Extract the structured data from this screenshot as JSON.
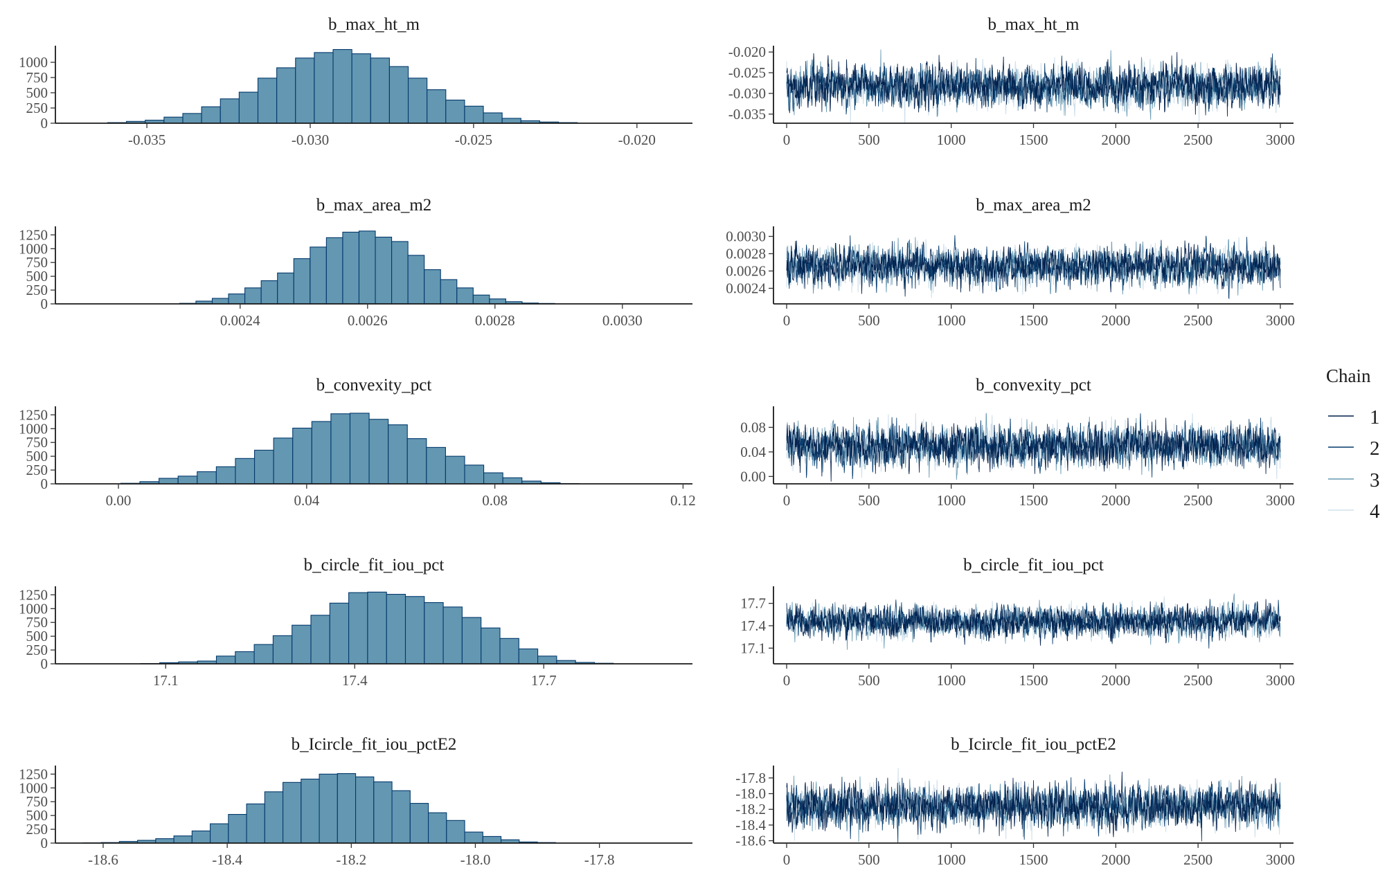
{
  "legend": {
    "title": "Chain",
    "items": [
      {
        "label": "1",
        "color": "#011f4b"
      },
      {
        "label": "2",
        "color": "#03396c"
      },
      {
        "label": "3",
        "color": "#6497b1"
      },
      {
        "label": "4",
        "color": "#d1e1ec"
      }
    ]
  },
  "chart_data": [
    {
      "type": "bar",
      "title": "b_max_ht_m",
      "xlim": [
        -0.0378,
        -0.0183
      ],
      "ylim": [
        0,
        1250
      ],
      "xticks": [
        -0.035,
        -0.03,
        -0.025,
        -0.02
      ],
      "xtick_labels": [
        "-0.035",
        "-0.030",
        "-0.025",
        "-0.020"
      ],
      "yticks": [
        0,
        250,
        500,
        750,
        1000
      ],
      "ytick_labels": [
        "0",
        "250",
        "500",
        "750",
        "1000"
      ],
      "bin_start": -0.0362,
      "bin_width": 0.000575,
      "values": [
        10,
        30,
        50,
        100,
        160,
        270,
        400,
        510,
        740,
        910,
        1070,
        1160,
        1210,
        1140,
        1070,
        930,
        740,
        550,
        380,
        280,
        170,
        80,
        40,
        20,
        10
      ]
    },
    {
      "type": "line",
      "title": "b_max_ht_m",
      "xlim": [
        -80,
        3080
      ],
      "ylim": [
        -0.0372,
        -0.0188
      ],
      "xticks": [
        0,
        500,
        1000,
        1500,
        2000,
        2500,
        3000
      ],
      "xtick_labels": [
        "0",
        "500",
        "1000",
        "1500",
        "2000",
        "2500",
        "3000"
      ],
      "yticks": [
        -0.035,
        -0.03,
        -0.025,
        -0.02
      ],
      "ytick_labels": [
        "-0.035",
        "-0.030",
        "-0.025",
        "-0.020"
      ],
      "iterations": 3000,
      "mean": -0.0282,
      "sd": 0.0024,
      "series": [
        {
          "name": "1",
          "color": "#011f4b"
        },
        {
          "name": "2",
          "color": "#03396c"
        },
        {
          "name": "3",
          "color": "#6497b1"
        },
        {
          "name": "4",
          "color": "#d1e1ec"
        }
      ]
    },
    {
      "type": "bar",
      "title": "b_max_area_m2",
      "xlim": [
        0.00211,
        0.00311
      ],
      "ylim": [
        0,
        1380
      ],
      "xticks": [
        0.0024,
        0.0026,
        0.0028,
        0.003
      ],
      "xtick_labels": [
        "0.0024",
        "0.0026",
        "0.0028",
        "0.0030"
      ],
      "yticks": [
        0,
        250,
        500,
        750,
        1000,
        1250
      ],
      "ytick_labels": [
        "0",
        "250",
        "500",
        "750",
        "1000",
        "1250"
      ],
      "bin_start": 0.002305,
      "bin_width": 2.56e-05,
      "values": [
        10,
        50,
        100,
        180,
        290,
        420,
        560,
        820,
        1030,
        1200,
        1300,
        1320,
        1210,
        1130,
        880,
        620,
        440,
        290,
        160,
        90,
        40,
        15,
        8
      ]
    },
    {
      "type": "line",
      "title": "b_max_area_m2",
      "xlim": [
        -80,
        3080
      ],
      "ylim": [
        0.00222,
        0.0031
      ],
      "xticks": [
        0,
        500,
        1000,
        1500,
        2000,
        2500,
        3000
      ],
      "xtick_labels": [
        "0",
        "500",
        "1000",
        "1500",
        "2000",
        "2500",
        "3000"
      ],
      "yticks": [
        0.0024,
        0.0026,
        0.0028,
        0.003
      ],
      "ytick_labels": [
        "0.0024",
        "0.0026",
        "0.0028",
        "0.0030"
      ],
      "iterations": 3000,
      "mean": 0.00266,
      "sd": 0.000105,
      "series": [
        {
          "name": "1",
          "color": "#011f4b"
        },
        {
          "name": "2",
          "color": "#03396c"
        },
        {
          "name": "3",
          "color": "#6497b1"
        },
        {
          "name": "4",
          "color": "#d1e1ec"
        }
      ]
    },
    {
      "type": "bar",
      "title": "b_convexity_pct",
      "xlim": [
        -0.0134,
        0.122
      ],
      "ylim": [
        0,
        1380
      ],
      "xticks": [
        0.0,
        0.04,
        0.08,
        0.12
      ],
      "xtick_labels": [
        "0.00",
        "0.04",
        "0.08",
        "0.12"
      ],
      "yticks": [
        0,
        250,
        500,
        750,
        1000,
        1250
      ],
      "ytick_labels": [
        "0",
        "250",
        "500",
        "750",
        "1000",
        "1250"
      ],
      "bin_start": 0.0005,
      "bin_width": 0.00406,
      "values": [
        10,
        40,
        100,
        140,
        220,
        310,
        460,
        610,
        830,
        1010,
        1130,
        1270,
        1280,
        1170,
        1070,
        820,
        660,
        500,
        340,
        200,
        110,
        50,
        20,
        5
      ]
    },
    {
      "type": "line",
      "title": "b_convexity_pct",
      "xlim": [
        -80,
        3080
      ],
      "ylim": [
        -0.012,
        0.112
      ],
      "xticks": [
        0,
        500,
        1000,
        1500,
        2000,
        2500,
        3000
      ],
      "xtick_labels": [
        "0",
        "500",
        "1000",
        "1500",
        "2000",
        "2500",
        "3000"
      ],
      "yticks": [
        0.0,
        0.04,
        0.08
      ],
      "ytick_labels": [
        "0.00",
        "0.04",
        "0.08"
      ],
      "iterations": 3000,
      "mean": 0.05,
      "sd": 0.016,
      "series": [
        {
          "name": "1",
          "color": "#011f4b"
        },
        {
          "name": "2",
          "color": "#03396c"
        },
        {
          "name": "3",
          "color": "#6497b1"
        },
        {
          "name": "4",
          "color": "#d1e1ec"
        }
      ]
    },
    {
      "type": "bar",
      "title": "b_circle_fit_iou_pct",
      "xlim": [
        16.925,
        17.936
      ],
      "ylim": [
        0,
        1380
      ],
      "xticks": [
        17.1,
        17.4,
        17.7
      ],
      "xtick_labels": [
        "17.1",
        "17.4",
        "17.7"
      ],
      "yticks": [
        0,
        250,
        500,
        750,
        1000,
        1250
      ],
      "ytick_labels": [
        "0",
        "250",
        "500",
        "750",
        "1000",
        "1250"
      ],
      "bin_start": 17.0605,
      "bin_width": 0.03,
      "values": [
        5,
        20,
        35,
        50,
        140,
        220,
        350,
        510,
        700,
        880,
        1100,
        1290,
        1300,
        1260,
        1220,
        1110,
        1030,
        840,
        650,
        460,
        270,
        140,
        60,
        25,
        10
      ]
    },
    {
      "type": "line",
      "title": "b_circle_fit_iou_pct",
      "xlim": [
        -80,
        3080
      ],
      "ylim": [
        16.89,
        17.91
      ],
      "xticks": [
        0,
        500,
        1000,
        1500,
        2000,
        2500,
        3000
      ],
      "xtick_labels": [
        "0",
        "500",
        "1000",
        "1500",
        "2000",
        "2500",
        "3000"
      ],
      "yticks": [
        17.1,
        17.4,
        17.7
      ],
      "ytick_labels": [
        "17.1",
        "17.4",
        "17.7"
      ],
      "iterations": 3000,
      "mean": 17.46,
      "sd": 0.1,
      "series": [
        {
          "name": "1",
          "color": "#011f4b"
        },
        {
          "name": "2",
          "color": "#03396c"
        },
        {
          "name": "3",
          "color": "#6497b1"
        },
        {
          "name": "4",
          "color": "#d1e1ec"
        }
      ]
    },
    {
      "type": "bar",
      "title": "b_Icircle_fit_iou_pctE2",
      "xlim": [
        -18.677,
        -17.65
      ],
      "ylim": [
        0,
        1380
      ],
      "xticks": [
        -18.6,
        -18.4,
        -18.2,
        -18.0,
        -17.8
      ],
      "xtick_labels": [
        "-18.6",
        "-18.4",
        "-18.2",
        "-18.0",
        "-17.8"
      ],
      "yticks": [
        0,
        250,
        500,
        750,
        1000,
        1250
      ],
      "ytick_labels": [
        "0",
        "250",
        "500",
        "750",
        "1000",
        "1250"
      ],
      "bin_start": -18.6325,
      "bin_width": 0.0293,
      "values": [
        5,
        10,
        30,
        50,
        80,
        130,
        220,
        350,
        520,
        710,
        930,
        1100,
        1160,
        1250,
        1260,
        1200,
        1110,
        950,
        720,
        550,
        410,
        200,
        120,
        60,
        20,
        10
      ]
    },
    {
      "type": "line",
      "title": "b_Icircle_fit_iou_pctE2",
      "xlim": [
        -80,
        3080
      ],
      "ylim": [
        -18.63,
        -17.66
      ],
      "xticks": [
        0,
        500,
        1000,
        1500,
        2000,
        2500,
        3000
      ],
      "xtick_labels": [
        "0",
        "500",
        "1000",
        "1500",
        "2000",
        "2500",
        "3000"
      ],
      "yticks": [
        -18.6,
        -18.4,
        -18.2,
        -18.0,
        -17.8
      ],
      "ytick_labels": [
        "-18.6",
        "-18.4",
        "-18.2",
        "-18.0",
        "-17.8"
      ],
      "iterations": 3000,
      "mean": -18.16,
      "sd": 0.13,
      "series": [
        {
          "name": "1",
          "color": "#011f4b"
        },
        {
          "name": "2",
          "color": "#03396c"
        },
        {
          "name": "3",
          "color": "#6497b1"
        },
        {
          "name": "4",
          "color": "#d1e1ec"
        }
      ]
    }
  ]
}
